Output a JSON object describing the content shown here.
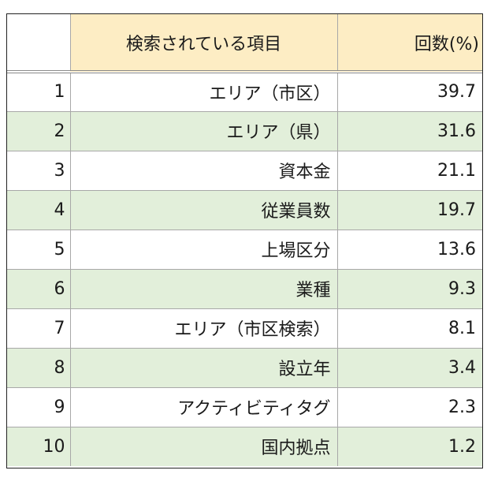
{
  "colors": {
    "header_bg": "#fdedc4",
    "stripe_bg": "#e2efda",
    "border": "#a8a8a8"
  },
  "table": {
    "headers": {
      "rank": "",
      "item": "検索されている項目",
      "pct": "回数(%)"
    },
    "rows": [
      {
        "rank": "1",
        "item": "エリア（市区）",
        "pct": "39.7"
      },
      {
        "rank": "2",
        "item": "エリア（県）",
        "pct": "31.6"
      },
      {
        "rank": "3",
        "item": "資本金",
        "pct": "21.1"
      },
      {
        "rank": "4",
        "item": "従業員数",
        "pct": "19.7"
      },
      {
        "rank": "5",
        "item": "上場区分",
        "pct": "13.6"
      },
      {
        "rank": "6",
        "item": "業種",
        "pct": "9.3"
      },
      {
        "rank": "7",
        "item": "エリア（市区検索）",
        "pct": "8.1"
      },
      {
        "rank": "8",
        "item": "設立年",
        "pct": "3.4"
      },
      {
        "rank": "9",
        "item": "アクティビティタグ",
        "pct": "2.3"
      },
      {
        "rank": "10",
        "item": "国内拠点",
        "pct": "1.2"
      }
    ]
  }
}
